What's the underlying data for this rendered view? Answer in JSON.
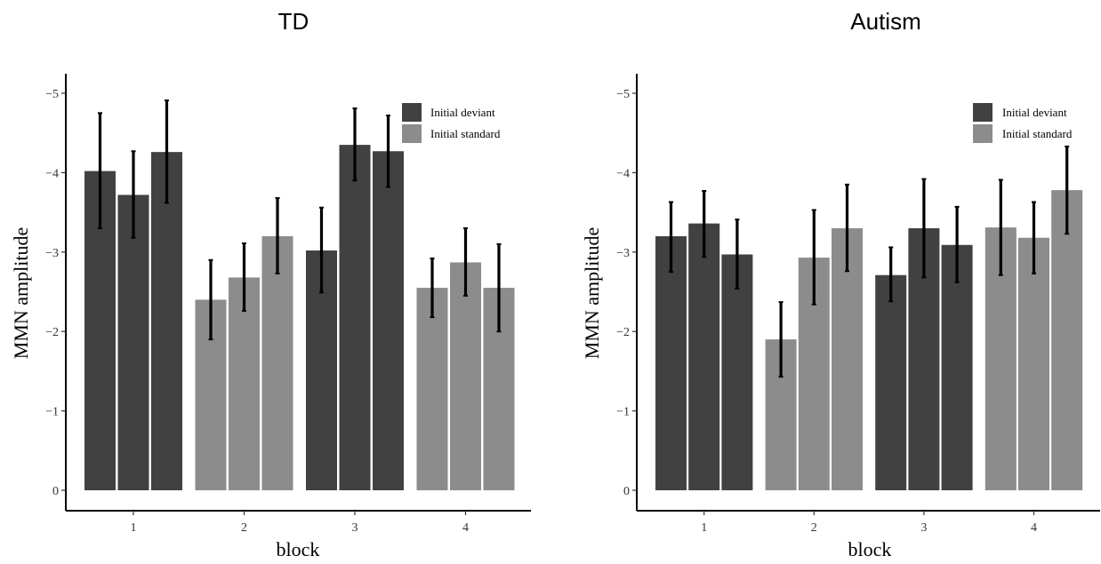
{
  "chart_data": [
    {
      "type": "bar",
      "title": "TD",
      "xlabel": "block",
      "ylabel": "MMN amplitude",
      "categories": [
        "1",
        "2",
        "3",
        "4"
      ],
      "ylim": [
        0,
        -5.2
      ],
      "y_reversed": true,
      "yticks": [
        0,
        -1,
        -2,
        -3,
        -4,
        -5
      ],
      "ytick_labels": [
        "0",
        "−1",
        "−2",
        "−3",
        "−4",
        "−5"
      ],
      "legend": [
        "Initial deviant",
        "Initial standard"
      ],
      "legend_position": "top-right",
      "grid": false,
      "colors": {
        "Initial deviant": "#414141",
        "Initial standard": "#8c8c8c"
      },
      "bars": [
        {
          "block": "1",
          "group": "Initial deviant",
          "value": -4.02,
          "error_low": -3.3,
          "error_high": -4.75
        },
        {
          "block": "1",
          "group": "Initial deviant",
          "value": -3.72,
          "error_low": -3.18,
          "error_high": -4.27
        },
        {
          "block": "1",
          "group": "Initial deviant",
          "value": -4.26,
          "error_low": -3.62,
          "error_high": -4.91
        },
        {
          "block": "2",
          "group": "Initial standard",
          "value": -2.4,
          "error_low": -1.9,
          "error_high": -2.9
        },
        {
          "block": "2",
          "group": "Initial standard",
          "value": -2.68,
          "error_low": -2.26,
          "error_high": -3.11
        },
        {
          "block": "2",
          "group": "Initial standard",
          "value": -3.2,
          "error_low": -2.73,
          "error_high": -3.68
        },
        {
          "block": "3",
          "group": "Initial deviant",
          "value": -3.02,
          "error_low": -2.49,
          "error_high": -3.56
        },
        {
          "block": "3",
          "group": "Initial deviant",
          "value": -4.35,
          "error_low": -3.9,
          "error_high": -4.81
        },
        {
          "block": "3",
          "group": "Initial deviant",
          "value": -4.27,
          "error_low": -3.82,
          "error_high": -4.72
        },
        {
          "block": "4",
          "group": "Initial standard",
          "value": -2.55,
          "error_low": -2.18,
          "error_high": -2.92
        },
        {
          "block": "4",
          "group": "Initial standard",
          "value": -2.87,
          "error_low": -2.45,
          "error_high": -3.3
        },
        {
          "block": "4",
          "group": "Initial standard",
          "value": -2.55,
          "error_low": -2.0,
          "error_high": -3.1
        }
      ]
    },
    {
      "type": "bar",
      "title": "Autism",
      "xlabel": "block",
      "ylabel": "MMN amplitude",
      "categories": [
        "1",
        "2",
        "3",
        "4"
      ],
      "ylim": [
        0,
        -5.2
      ],
      "y_reversed": true,
      "yticks": [
        0,
        -1,
        -2,
        -3,
        -4,
        -5
      ],
      "ytick_labels": [
        "0",
        "−1",
        "−2",
        "−3",
        "−4",
        "−5"
      ],
      "legend": [
        "Initial deviant",
        "Initial standard"
      ],
      "legend_position": "top-right",
      "grid": false,
      "colors": {
        "Initial deviant": "#414141",
        "Initial standard": "#8c8c8c"
      },
      "bars": [
        {
          "block": "1",
          "group": "Initial deviant",
          "value": -3.2,
          "error_low": -2.75,
          "error_high": -3.63
        },
        {
          "block": "1",
          "group": "Initial deviant",
          "value": -3.36,
          "error_low": -2.94,
          "error_high": -3.77
        },
        {
          "block": "1",
          "group": "Initial deviant",
          "value": -2.97,
          "error_low": -2.54,
          "error_high": -3.41
        },
        {
          "block": "2",
          "group": "Initial standard",
          "value": -1.9,
          "error_low": -1.43,
          "error_high": -2.37
        },
        {
          "block": "2",
          "group": "Initial standard",
          "value": -2.93,
          "error_low": -2.34,
          "error_high": -3.53
        },
        {
          "block": "2",
          "group": "Initial standard",
          "value": -3.3,
          "error_low": -2.76,
          "error_high": -3.85
        },
        {
          "block": "3",
          "group": "Initial deviant",
          "value": -2.71,
          "error_low": -2.38,
          "error_high": -3.06
        },
        {
          "block": "3",
          "group": "Initial deviant",
          "value": -3.3,
          "error_low": -2.68,
          "error_high": -3.92
        },
        {
          "block": "3",
          "group": "Initial deviant",
          "value": -3.09,
          "error_low": -2.62,
          "error_high": -3.57
        },
        {
          "block": "4",
          "group": "Initial standard",
          "value": -3.31,
          "error_low": -2.71,
          "error_high": -3.91
        },
        {
          "block": "4",
          "group": "Initial standard",
          "value": -3.18,
          "error_low": -2.73,
          "error_high": -3.63
        },
        {
          "block": "4",
          "group": "Initial standard",
          "value": -3.78,
          "error_low": -3.23,
          "error_high": -4.33
        }
      ]
    }
  ]
}
